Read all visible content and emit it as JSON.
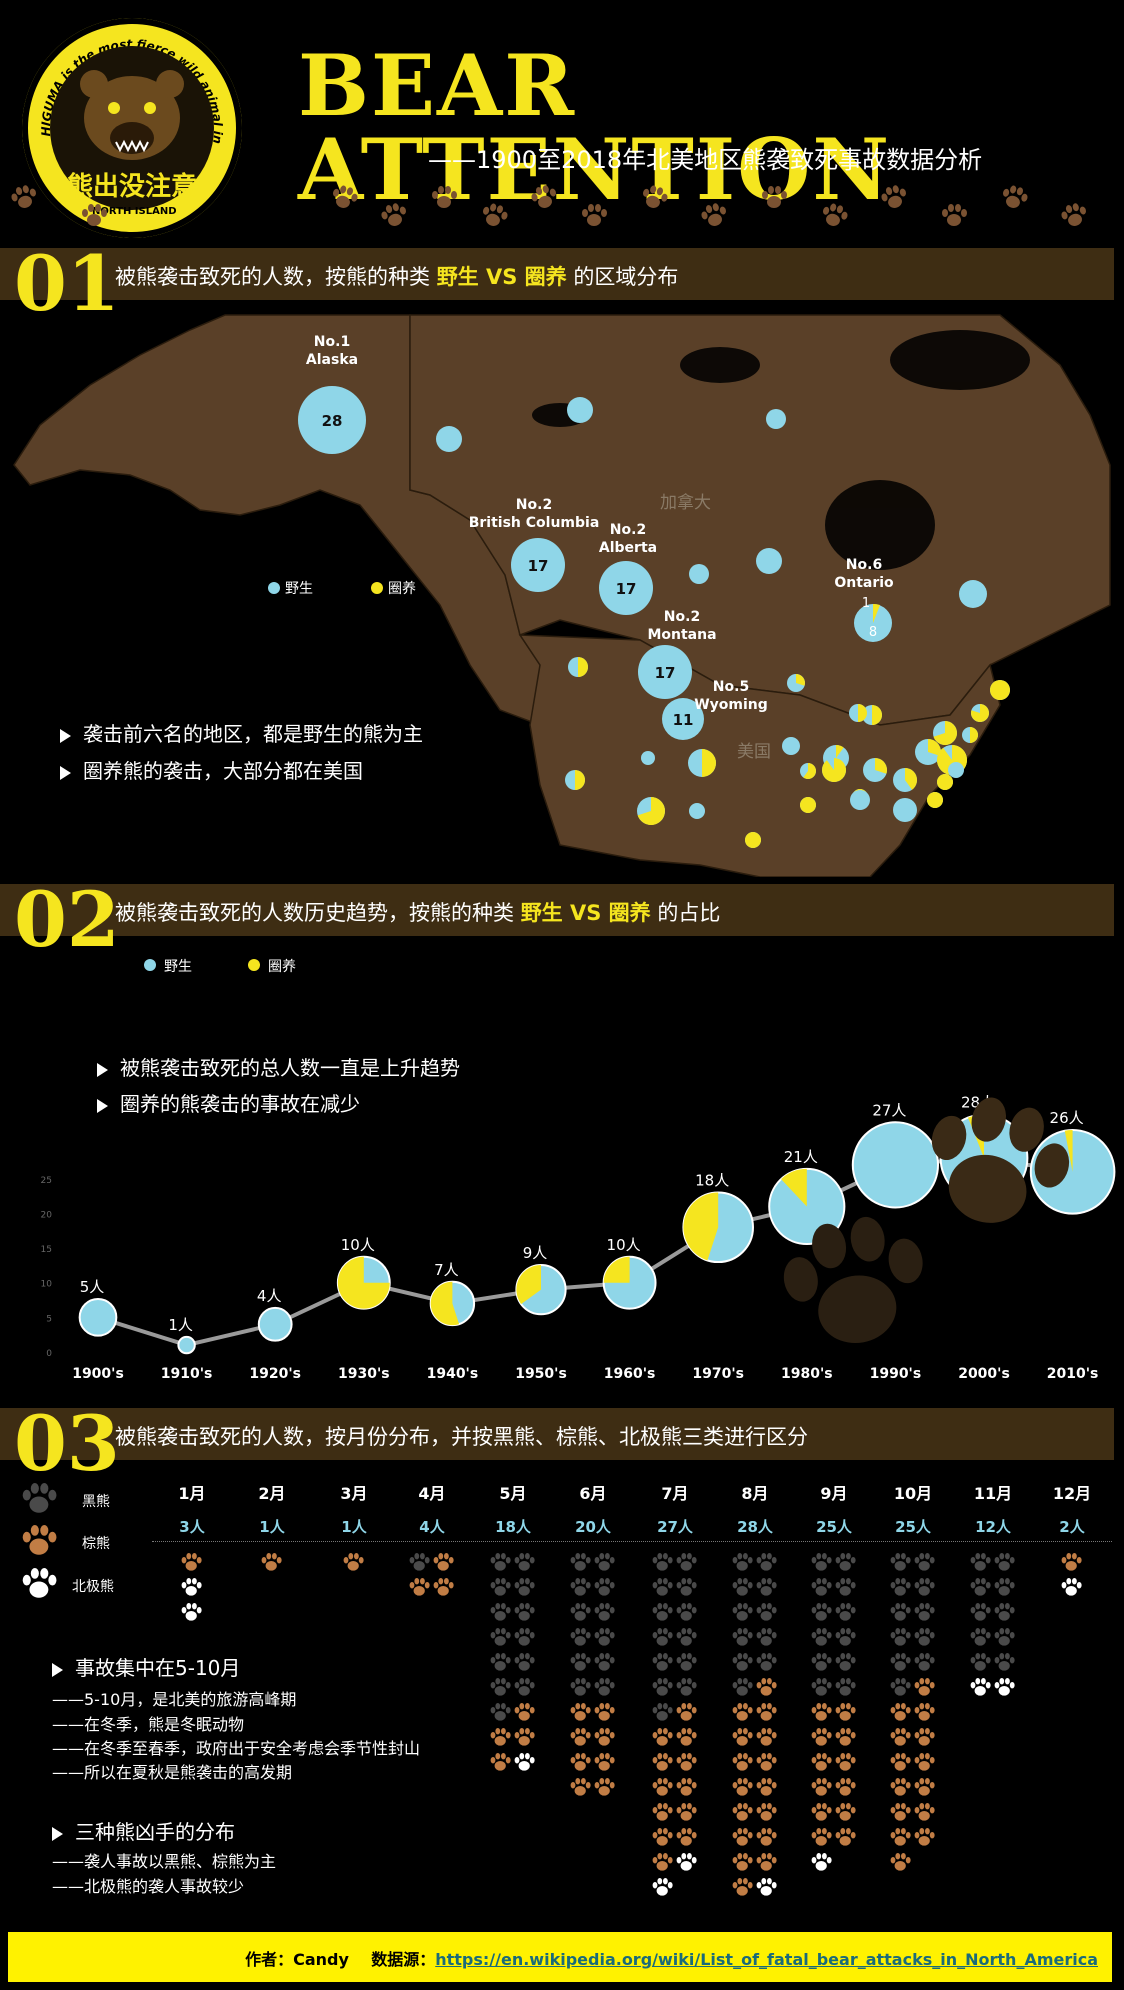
{
  "header": {
    "badge_arc_text": "HIGUMA is the most fierce wild animal in HOKKAIDO",
    "badge_cn": "熊出没注意",
    "badge_bottom": "NORTH ISLAND",
    "title": "BEAR ATTENTION",
    "subtitle": "——1900至2018年北美地区熊袭致死事故数据分析"
  },
  "colors": {
    "wild": "#8fd6e8",
    "captive": "#f5e51f",
    "accent": "#f5e51f",
    "bar": "#3e2d13",
    "land": "#5a4028"
  },
  "section1": {
    "num": "01",
    "title_pre": "被熊袭击致死的人数，按熊的种类 ",
    "title_hl": "野生 VS 圈养",
    "title_post": " 的区域分布",
    "legend_wild": "野生",
    "legend_captive": "圈养",
    "map_label_canada": "加拿大",
    "map_label_us": "美国",
    "bullets": [
      "袭击前六名的地区，都是野生的熊为主",
      "圈养熊的袭击，大部分都在美国"
    ],
    "regions": [
      {
        "rank": "No.1",
        "name": "Alaska",
        "value": "28"
      },
      {
        "rank": "No.2",
        "name": "British Columbia",
        "value": "17"
      },
      {
        "rank": "No.2",
        "name": "Alberta",
        "value": "17"
      },
      {
        "rank": "No.2",
        "name": "Montana",
        "value": "17"
      },
      {
        "rank": "No.5",
        "name": "Wyoming",
        "value": "11"
      },
      {
        "rank": "No.6",
        "name": "Ontario",
        "value": "8",
        "captive": "1"
      }
    ]
  },
  "section2": {
    "num": "02",
    "title_pre": "被熊袭击致死的人数历史趋势，按熊的种类 ",
    "title_hl": "野生 VS 圈养",
    "title_post": " 的占比",
    "legend_wild": "野生",
    "legend_captive": "圈养",
    "bullets": [
      "被熊袭击致死的总人数一直是上升趋势",
      "圈养的熊袭击的事故在减少"
    ],
    "chart_data": {
      "type": "line",
      "categories": [
        "1900's",
        "1910's",
        "1920's",
        "1930's",
        "1940's",
        "1950's",
        "1960's",
        "1970's",
        "1980's",
        "1990's",
        "2000's",
        "2010's"
      ],
      "values": [
        5,
        1,
        4,
        10,
        7,
        9,
        10,
        18,
        21,
        27,
        28,
        26
      ],
      "data_labels": [
        "5人",
        "1人",
        "4人",
        "10人",
        "7人",
        "9人",
        "10人",
        "18人",
        "21人",
        "27人",
        "28人",
        "26人"
      ],
      "captive_share": [
        0.0,
        0.0,
        0.0,
        0.75,
        0.55,
        0.35,
        0.25,
        0.45,
        0.12,
        0.0,
        0.06,
        0.03
      ],
      "series": [
        {
          "name": "野生"
        },
        {
          "name": "圈养"
        }
      ],
      "yticks": [
        0,
        5,
        10,
        15,
        20,
        25
      ],
      "ylim": [
        0,
        28
      ]
    }
  },
  "section3": {
    "num": "03",
    "title": "被熊袭击致死的人数，按月份分布，并按黑熊、棕熊、北极熊三类进行区分",
    "legend": [
      "黑熊",
      "棕熊",
      "北极熊"
    ],
    "months": [
      {
        "m": "1月",
        "count": "3人",
        "black": 0,
        "brown": 1,
        "polar": 2
      },
      {
        "m": "2月",
        "count": "1人",
        "black": 0,
        "brown": 1,
        "polar": 0
      },
      {
        "m": "3月",
        "count": "1人",
        "black": 0,
        "brown": 1,
        "polar": 0
      },
      {
        "m": "4月",
        "count": "4人",
        "black": 1,
        "brown": 3,
        "polar": 0
      },
      {
        "m": "5月",
        "count": "18人",
        "black": 13,
        "brown": 4,
        "polar": 1
      },
      {
        "m": "6月",
        "count": "20人",
        "black": 12,
        "brown": 8,
        "polar": 0
      },
      {
        "m": "7月",
        "count": "27人",
        "black": 13,
        "brown": 12,
        "polar": 2
      },
      {
        "m": "8月",
        "count": "28人",
        "black": 11,
        "brown": 16,
        "polar": 1
      },
      {
        "m": "9月",
        "count": "25人",
        "black": 12,
        "brown": 12,
        "polar": 1
      },
      {
        "m": "10月",
        "count": "25人",
        "black": 11,
        "brown": 14,
        "polar": 0
      },
      {
        "m": "11月",
        "count": "12人",
        "black": 10,
        "brown": 0,
        "polar": 2
      },
      {
        "m": "12月",
        "count": "2人",
        "black": 0,
        "brown": 1,
        "polar": 1
      }
    ],
    "note1_head": "事故集中在5-10月",
    "note1_lines": [
      "——5-10月，是北美的旅游高峰期",
      "——在冬季，熊是冬眠动物",
      "——在冬季至春季，政府出于安全考虑会季节性封山",
      "——所以在夏秋是熊袭击的高发期"
    ],
    "note2_head": "三种熊凶手的分布",
    "note2_lines": [
      "——袭人事故以黑熊、棕熊为主",
      "——北极熊的袭人事故较少"
    ]
  },
  "footer": {
    "author": "作者：Candy",
    "source_label": "数据源：",
    "source_url": "https://en.wikipedia.org/wiki/List_of_fatal_bear_attacks_in_North_America"
  }
}
